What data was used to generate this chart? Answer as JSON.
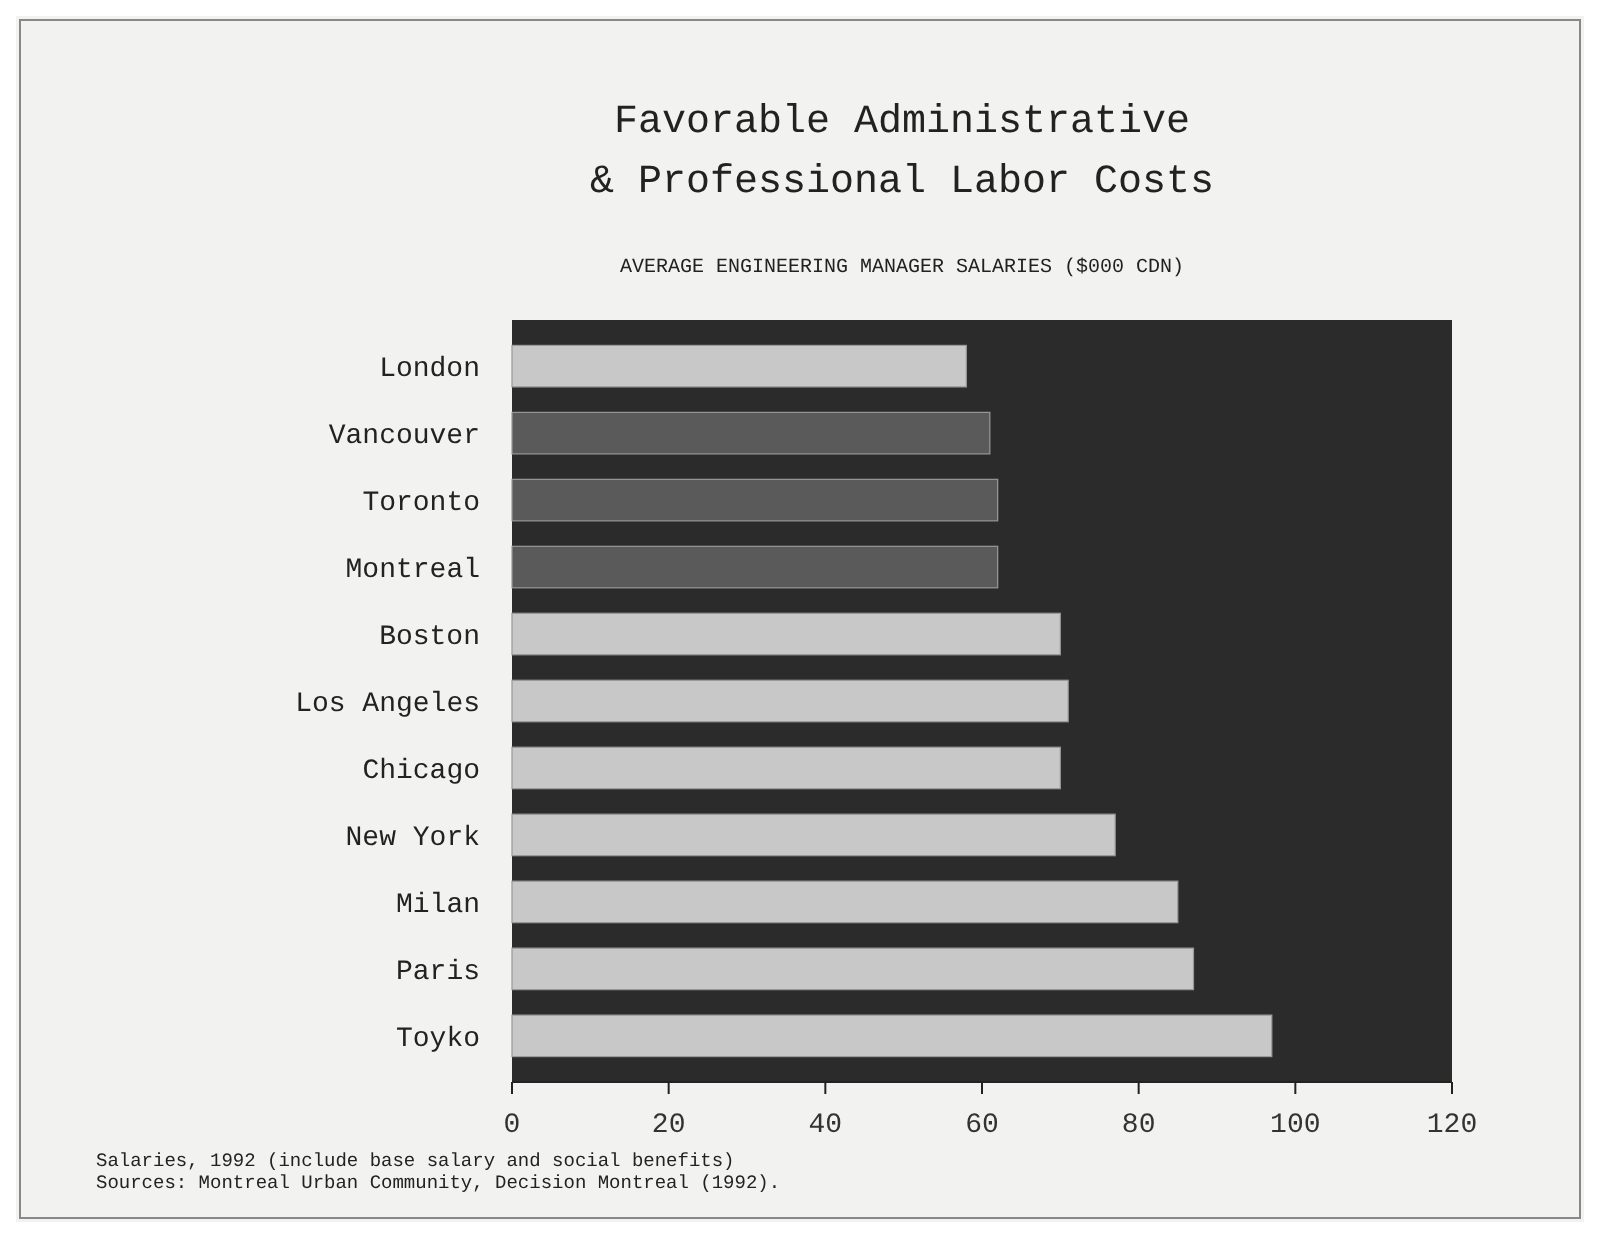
{
  "chart_data": {
    "type": "bar",
    "orientation": "horizontal",
    "title": "Favorable Administrative\n& Professional Labor Costs",
    "subtitle": "AVERAGE ENGINEERING MANAGER SALARIES ($000 CDN)",
    "categories": [
      "London",
      "Vancouver",
      "Toronto",
      "Montreal",
      "Boston",
      "Los Angeles",
      "Chicago",
      "New York",
      "Milan",
      "Paris",
      "Toyko"
    ],
    "values": [
      58,
      61,
      62,
      62,
      70,
      71,
      70,
      77,
      85,
      87,
      97
    ],
    "colors": [
      "#c8c8c8",
      "#5a5a5a",
      "#5a5a5a",
      "#5a5a5a",
      "#c8c8c8",
      "#c8c8c8",
      "#c8c8c8",
      "#c8c8c8",
      "#c8c8c8",
      "#c8c8c8",
      "#c8c8c8"
    ],
    "xlim": [
      0,
      120
    ],
    "xticks": [
      0,
      20,
      40,
      60,
      80,
      100,
      120
    ],
    "grid": false,
    "annotations": [
      "Salaries, 1992 (include base salary and social benefits)",
      "Sources: Montreal Urban Community, Decision Montreal (1992)."
    ]
  }
}
